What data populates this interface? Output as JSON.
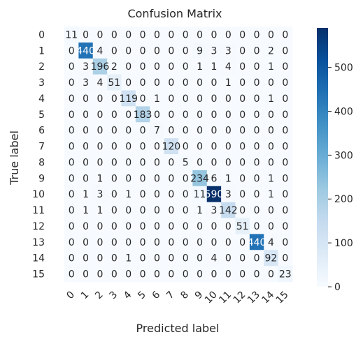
{
  "chart_data": {
    "type": "heatmap",
    "title": "Confusion Matrix",
    "xlabel": "Predicted label",
    "ylabel": "True label",
    "x_tick_labels": [
      "0",
      "1",
      "2",
      "3",
      "4",
      "5",
      "6",
      "7",
      "8",
      "9",
      "10",
      "11",
      "12",
      "13",
      "14",
      "15"
    ],
    "y_tick_labels": [
      "0",
      "1",
      "2",
      "3",
      "4",
      "5",
      "6",
      "7",
      "8",
      "9",
      "10",
      "11",
      "12",
      "13",
      "14",
      "15"
    ],
    "matrix": [
      [
        11,
        0,
        0,
        0,
        0,
        0,
        0,
        0,
        0,
        0,
        0,
        0,
        0,
        0,
        0,
        0
      ],
      [
        0,
        440,
        4,
        0,
        0,
        0,
        0,
        0,
        0,
        9,
        3,
        3,
        0,
        0,
        2,
        0
      ],
      [
        0,
        3,
        196,
        2,
        0,
        0,
        0,
        0,
        0,
        1,
        1,
        4,
        0,
        0,
        1,
        0
      ],
      [
        0,
        3,
        4,
        51,
        0,
        0,
        0,
        0,
        0,
        0,
        0,
        1,
        0,
        0,
        0,
        0
      ],
      [
        0,
        0,
        0,
        0,
        119,
        0,
        1,
        0,
        0,
        0,
        0,
        0,
        0,
        0,
        1,
        0
      ],
      [
        0,
        0,
        0,
        0,
        0,
        183,
        0,
        0,
        0,
        0,
        0,
        0,
        0,
        0,
        0,
        0
      ],
      [
        0,
        0,
        0,
        0,
        0,
        0,
        7,
        0,
        0,
        0,
        0,
        0,
        0,
        0,
        0,
        0
      ],
      [
        0,
        0,
        0,
        0,
        0,
        0,
        0,
        120,
        0,
        0,
        0,
        0,
        0,
        0,
        0,
        0
      ],
      [
        0,
        0,
        0,
        0,
        0,
        0,
        0,
        0,
        5,
        0,
        0,
        0,
        0,
        0,
        0,
        0
      ],
      [
        0,
        0,
        1,
        0,
        0,
        0,
        0,
        0,
        0,
        234,
        6,
        1,
        0,
        0,
        1,
        0
      ],
      [
        0,
        1,
        3,
        0,
        1,
        0,
        0,
        0,
        0,
        11,
        590,
        3,
        0,
        0,
        1,
        0
      ],
      [
        0,
        1,
        1,
        0,
        0,
        0,
        0,
        0,
        0,
        1,
        3,
        142,
        0,
        0,
        0,
        0
      ],
      [
        0,
        0,
        0,
        0,
        0,
        0,
        0,
        0,
        0,
        0,
        0,
        0,
        51,
        0,
        0,
        0
      ],
      [
        0,
        0,
        0,
        0,
        0,
        0,
        0,
        0,
        0,
        0,
        0,
        0,
        0,
        440,
        4,
        0
      ],
      [
        0,
        0,
        0,
        0,
        1,
        0,
        0,
        0,
        0,
        0,
        4,
        0,
        0,
        0,
        92,
        0
      ],
      [
        0,
        0,
        0,
        0,
        0,
        0,
        0,
        0,
        0,
        0,
        0,
        0,
        0,
        0,
        0,
        23
      ]
    ],
    "colormap": "Blues",
    "colorbar": {
      "ticks": [
        0,
        100,
        200,
        300,
        400,
        500
      ],
      "range": [
        0,
        590
      ]
    },
    "grid": false
  }
}
